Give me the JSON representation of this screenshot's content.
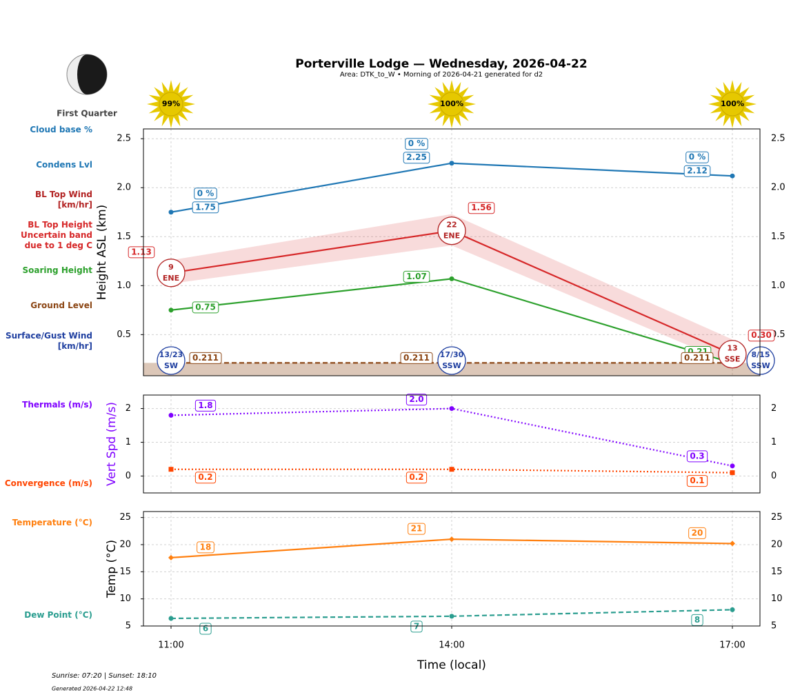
{
  "title": "Porterville Lodge — Wednesday, 2026-04-22",
  "subtitle": "Area: DTK_to_W • Morning of 2026-04-21 generated for d2",
  "moon_phase": "First Quarter",
  "sunshine": {
    "values": [
      99,
      100,
      100
    ],
    "value_labels": [
      "99%",
      "100%",
      "100%"
    ],
    "color": "#e6c800"
  },
  "footer": {
    "sun_times": "Sunrise: 07:20 | Sunset: 18:10",
    "generated": "Generated 2026-04-22 12:48"
  },
  "chart_data": [
    {
      "type": "line",
      "ylabel": "Height ASL (km)",
      "ylim": [
        0.08,
        2.6
      ],
      "yticks": [
        0.5,
        {
          "value": 1,
          "label": "1.0"
        },
        1.5,
        {
          "value": 2,
          "label": "2.0"
        },
        2.5
      ],
      "grid": true,
      "cloud_base": {
        "name": "Cloud base %",
        "color": "#1f77b4",
        "values": [
          0,
          0,
          0
        ],
        "value_labels": [
          "0 %",
          "0 %",
          "0 %"
        ]
      },
      "series": [
        {
          "name": "Condens Lvl",
          "color": "#1f77b4",
          "values": [
            1.75,
            2.25,
            2.12
          ]
        },
        {
          "name": "BL Top Height",
          "color": "#d62728",
          "values": [
            1.13,
            1.56,
            0.3
          ],
          "value_labels": [
            "1.13",
            "1.56",
            "0.30"
          ],
          "band": {
            "name": "Uncertain band due to 1 deg C",
            "low": [
              1.02,
              1.41,
              0.2
            ],
            "high": [
              1.26,
              1.73,
              0.45
            ]
          }
        },
        {
          "name": "Soaring Height",
          "color": "#2ca02c",
          "values": [
            0.75,
            1.07,
            0.21
          ]
        },
        {
          "name": "Ground Level",
          "color": "#8b4513",
          "style": "dashed",
          "values": [
            0.211,
            0.211,
            0.211
          ]
        }
      ],
      "bl_wind": {
        "name": "BL Top Wind [km/hr]",
        "color": "#b22222",
        "speed": [
          9,
          22,
          13
        ],
        "direction": [
          "ENE",
          "ENE",
          "SSE"
        ]
      },
      "surface_wind": {
        "name": "Surface/Gust Wind [km/hr]",
        "color": "#1f3fa0",
        "speed": [
          13,
          17,
          8
        ],
        "gust": [
          23,
          30,
          15
        ],
        "labels": [
          "13/23",
          "17/30",
          "8/15"
        ],
        "direction": [
          "SW",
          "SSW",
          "SSW"
        ]
      }
    },
    {
      "type": "line",
      "ylabel": "Vert Spd (m/s)",
      "ylabel_color": "#7f00ff",
      "ylim": [
        -0.5,
        2.4
      ],
      "yticks": [
        0,
        1,
        2
      ],
      "grid": true,
      "series": [
        {
          "name": "Thermals (m/s)",
          "color": "#7f00ff",
          "style": "dotted",
          "values": [
            1.8,
            2.0,
            0.3
          ],
          "value_labels": [
            "1.8",
            "2.0",
            "0.3"
          ]
        },
        {
          "name": "Convergence (m/s)",
          "color": "#ff4500",
          "style": "dotted",
          "marker": "square",
          "values": [
            0.2,
            0.2,
            0.1
          ]
        }
      ]
    },
    {
      "type": "line",
      "ylabel": "Temp (°C)",
      "xlabel": "Time (local)",
      "categories": [
        "11:00",
        "14:00",
        "17:00"
      ],
      "ylim": [
        5,
        26.1
      ],
      "yticks": [
        5,
        10,
        15,
        20,
        25
      ],
      "grid": true,
      "series": [
        {
          "name": "Temperature (°C)",
          "color": "#ff7f0e",
          "marker": "diamond",
          "values": [
            17.6,
            21,
            20.2
          ],
          "value_labels": [
            "18",
            "21",
            "20"
          ]
        },
        {
          "name": "Dew Point (°C)",
          "color": "#2a9d8f",
          "style": "dashed",
          "values": [
            6.4,
            6.8,
            8
          ],
          "value_labels": [
            "6",
            "7",
            "8"
          ]
        }
      ]
    }
  ]
}
